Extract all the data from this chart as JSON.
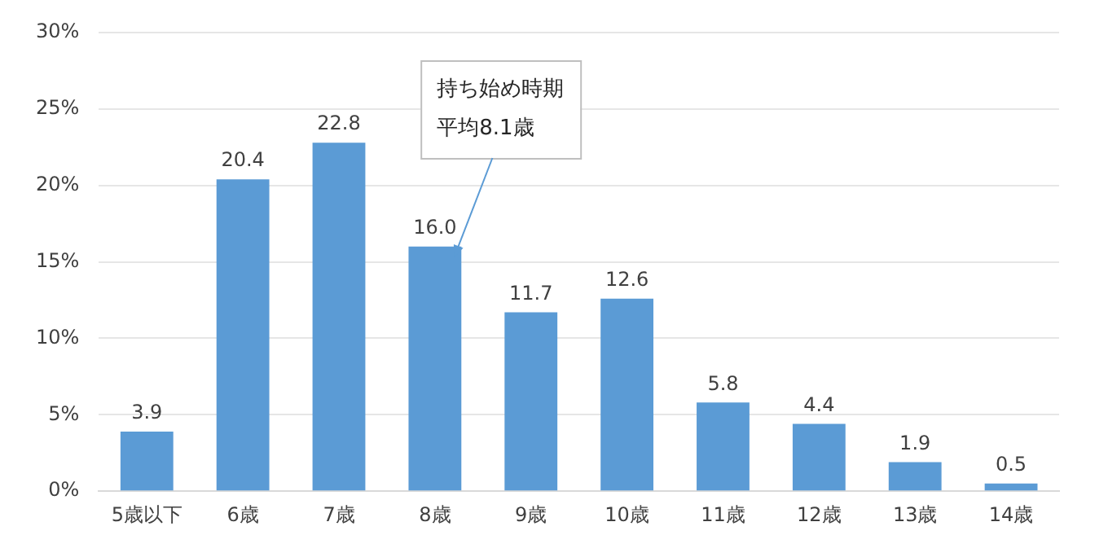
{
  "chart_data": {
    "type": "bar",
    "categories": [
      "5歳以下",
      "6歳",
      "7歳",
      "8歳",
      "9歳",
      "10歳",
      "11歳",
      "12歳",
      "13歳",
      "14歳"
    ],
    "values": [
      3.9,
      20.4,
      22.8,
      16.0,
      11.7,
      12.6,
      5.8,
      4.4,
      1.9,
      0.5
    ],
    "value_labels": [
      "3.9",
      "20.4",
      "22.8",
      "16.0",
      "11.7",
      "12.6",
      "5.8",
      "4.4",
      "1.9",
      "0.5"
    ],
    "color": "#5b9bd5",
    "ylim": [
      0,
      30
    ],
    "yticks": [
      {
        "value": 0,
        "label": "0%"
      },
      {
        "value": 5,
        "label": "5%"
      },
      {
        "value": 10,
        "label": "10%"
      },
      {
        "value": 15,
        "label": "15%"
      },
      {
        "value": 20,
        "label": "20%"
      },
      {
        "value": 25,
        "label": "25%"
      },
      {
        "value": 30,
        "label": "30%"
      }
    ],
    "grid": "y",
    "legend": false,
    "annotations": [
      "持ち始め時期",
      "平均8.1歳"
    ]
  }
}
